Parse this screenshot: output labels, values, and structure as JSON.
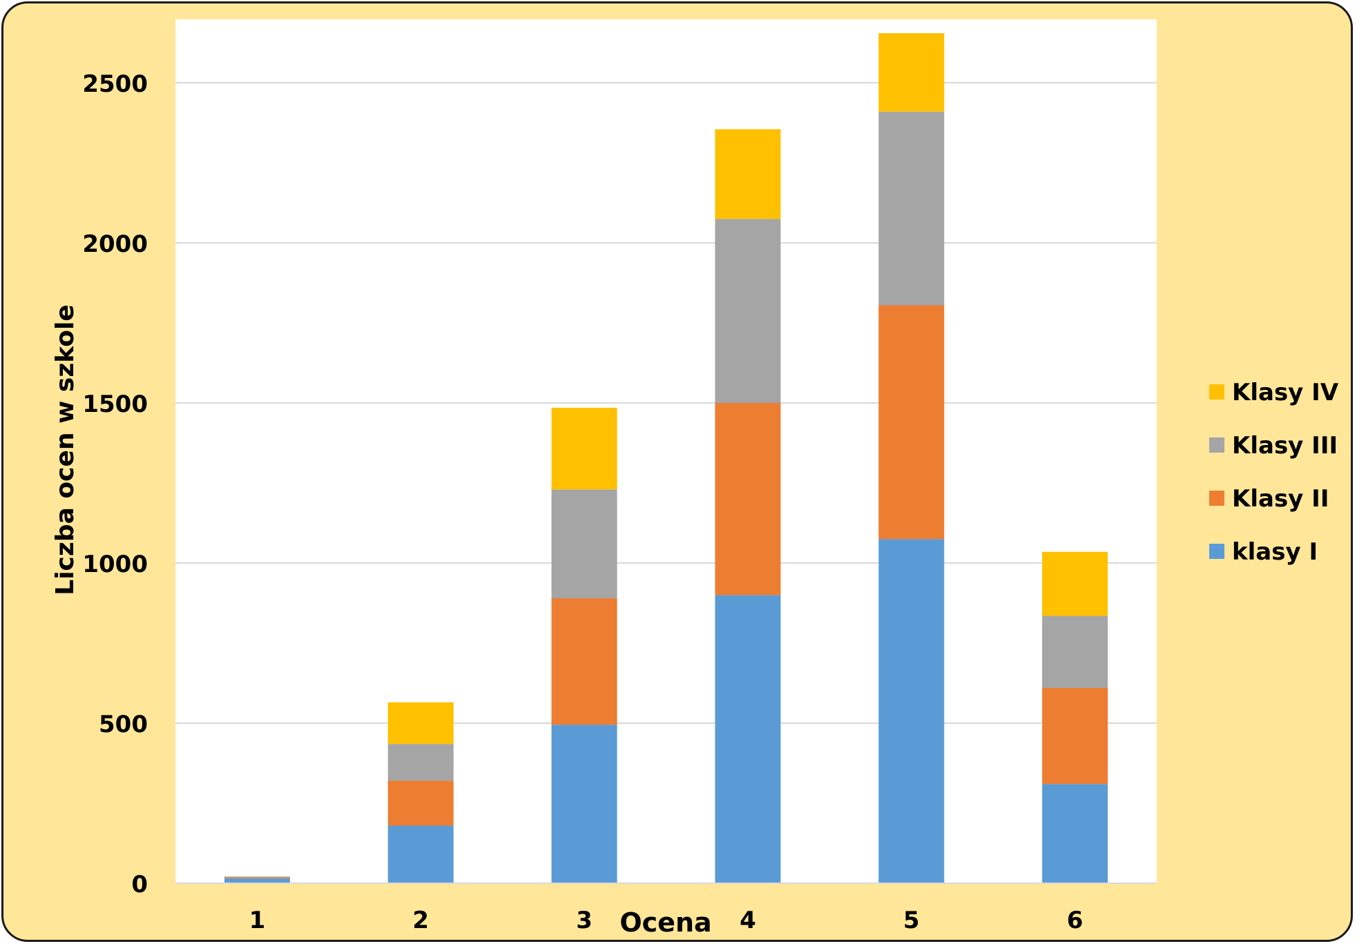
{
  "chart_data": {
    "type": "bar",
    "stacked": true,
    "title": "",
    "xlabel": "Ocena",
    "ylabel": "Liczba ocen w szkole",
    "categories": [
      "1",
      "2",
      "3",
      "4",
      "5",
      "6"
    ],
    "ylim": [
      0,
      2700
    ],
    "yticks": [
      0,
      500,
      1000,
      1500,
      2000,
      2500
    ],
    "grid": true,
    "legend_position": "right",
    "series": [
      {
        "name": "klasy I",
        "color": "#5b9bd5",
        "values": [
          15,
          180,
          495,
          900,
          1075,
          310
        ]
      },
      {
        "name": "Klasy II",
        "color": "#ed7d31",
        "values": [
          3,
          140,
          395,
          600,
          730,
          300
        ]
      },
      {
        "name": "Klasy III",
        "color": "#a5a5a5",
        "values": [
          3,
          115,
          340,
          575,
          605,
          225
        ]
      },
      {
        "name": "Klasy IV",
        "color": "#ffc000",
        "values": [
          0,
          130,
          255,
          280,
          245,
          200
        ]
      }
    ],
    "legend_order": [
      "Klasy IV",
      "Klasy III",
      "Klasy II",
      "klasy I"
    ]
  }
}
